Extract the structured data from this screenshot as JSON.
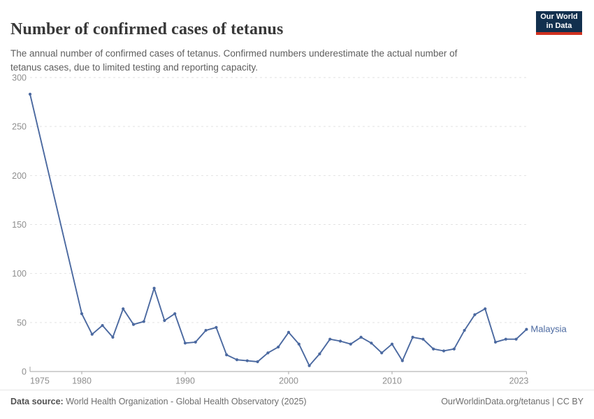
{
  "header": {
    "title": "Number of confirmed cases of tetanus",
    "subtitle": "The annual number of confirmed cases of tetanus. Confirmed numbers underestimate the actual number of\ntetanus cases, due to limited testing and reporting capacity.",
    "logo": {
      "line1": "Our World",
      "line2": "in Data"
    }
  },
  "footer": {
    "source_label": "Data source:",
    "source_value": "World Health Organization - Global Health Observatory (2025)",
    "link": "OurWorldinData.org/tetanus",
    "license": " | CC BY"
  },
  "colors": {
    "line": "#4b69a0",
    "entity_label": "#4b69a0",
    "grid": "#e2e2e2",
    "axis": "#a5a5a5",
    "tick_label": "#8f8f8f",
    "logo_bg": "#12304e",
    "logo_stripe": "#d0311f"
  },
  "chart_data": {
    "type": "line",
    "title": "Number of confirmed cases of tetanus",
    "xlabel": "",
    "ylabel": "",
    "xlim": [
      1975,
      2023
    ],
    "ylim": [
      0,
      300
    ],
    "x_ticks": [
      1975,
      1980,
      1990,
      2000,
      2010,
      2023
    ],
    "y_ticks": [
      0,
      50,
      100,
      150,
      200,
      250,
      300
    ],
    "grid": "horizontal-dashed",
    "legend": "entity-label-at-line-end",
    "markers": true,
    "series": [
      {
        "name": "Malaysia",
        "x": [
          1975,
          1980,
          1981,
          1982,
          1983,
          1984,
          1985,
          1986,
          1987,
          1988,
          1989,
          1990,
          1991,
          1992,
          1993,
          1994,
          1995,
          1996,
          1997,
          1998,
          1999,
          2000,
          2001,
          2002,
          2003,
          2004,
          2005,
          2006,
          2007,
          2008,
          2009,
          2010,
          2011,
          2012,
          2013,
          2014,
          2015,
          2016,
          2017,
          2018,
          2019,
          2020,
          2021,
          2022,
          2023
        ],
        "y": [
          283,
          59,
          38,
          47,
          35,
          64,
          48,
          51,
          85,
          52,
          59,
          29,
          30,
          42,
          45,
          17,
          12,
          11,
          10,
          19,
          25,
          40,
          28,
          6,
          18,
          33,
          31,
          28,
          35,
          29,
          19,
          28,
          11,
          35,
          33,
          23,
          21,
          23,
          42,
          58,
          64,
          30,
          33,
          33,
          43
        ]
      }
    ]
  }
}
